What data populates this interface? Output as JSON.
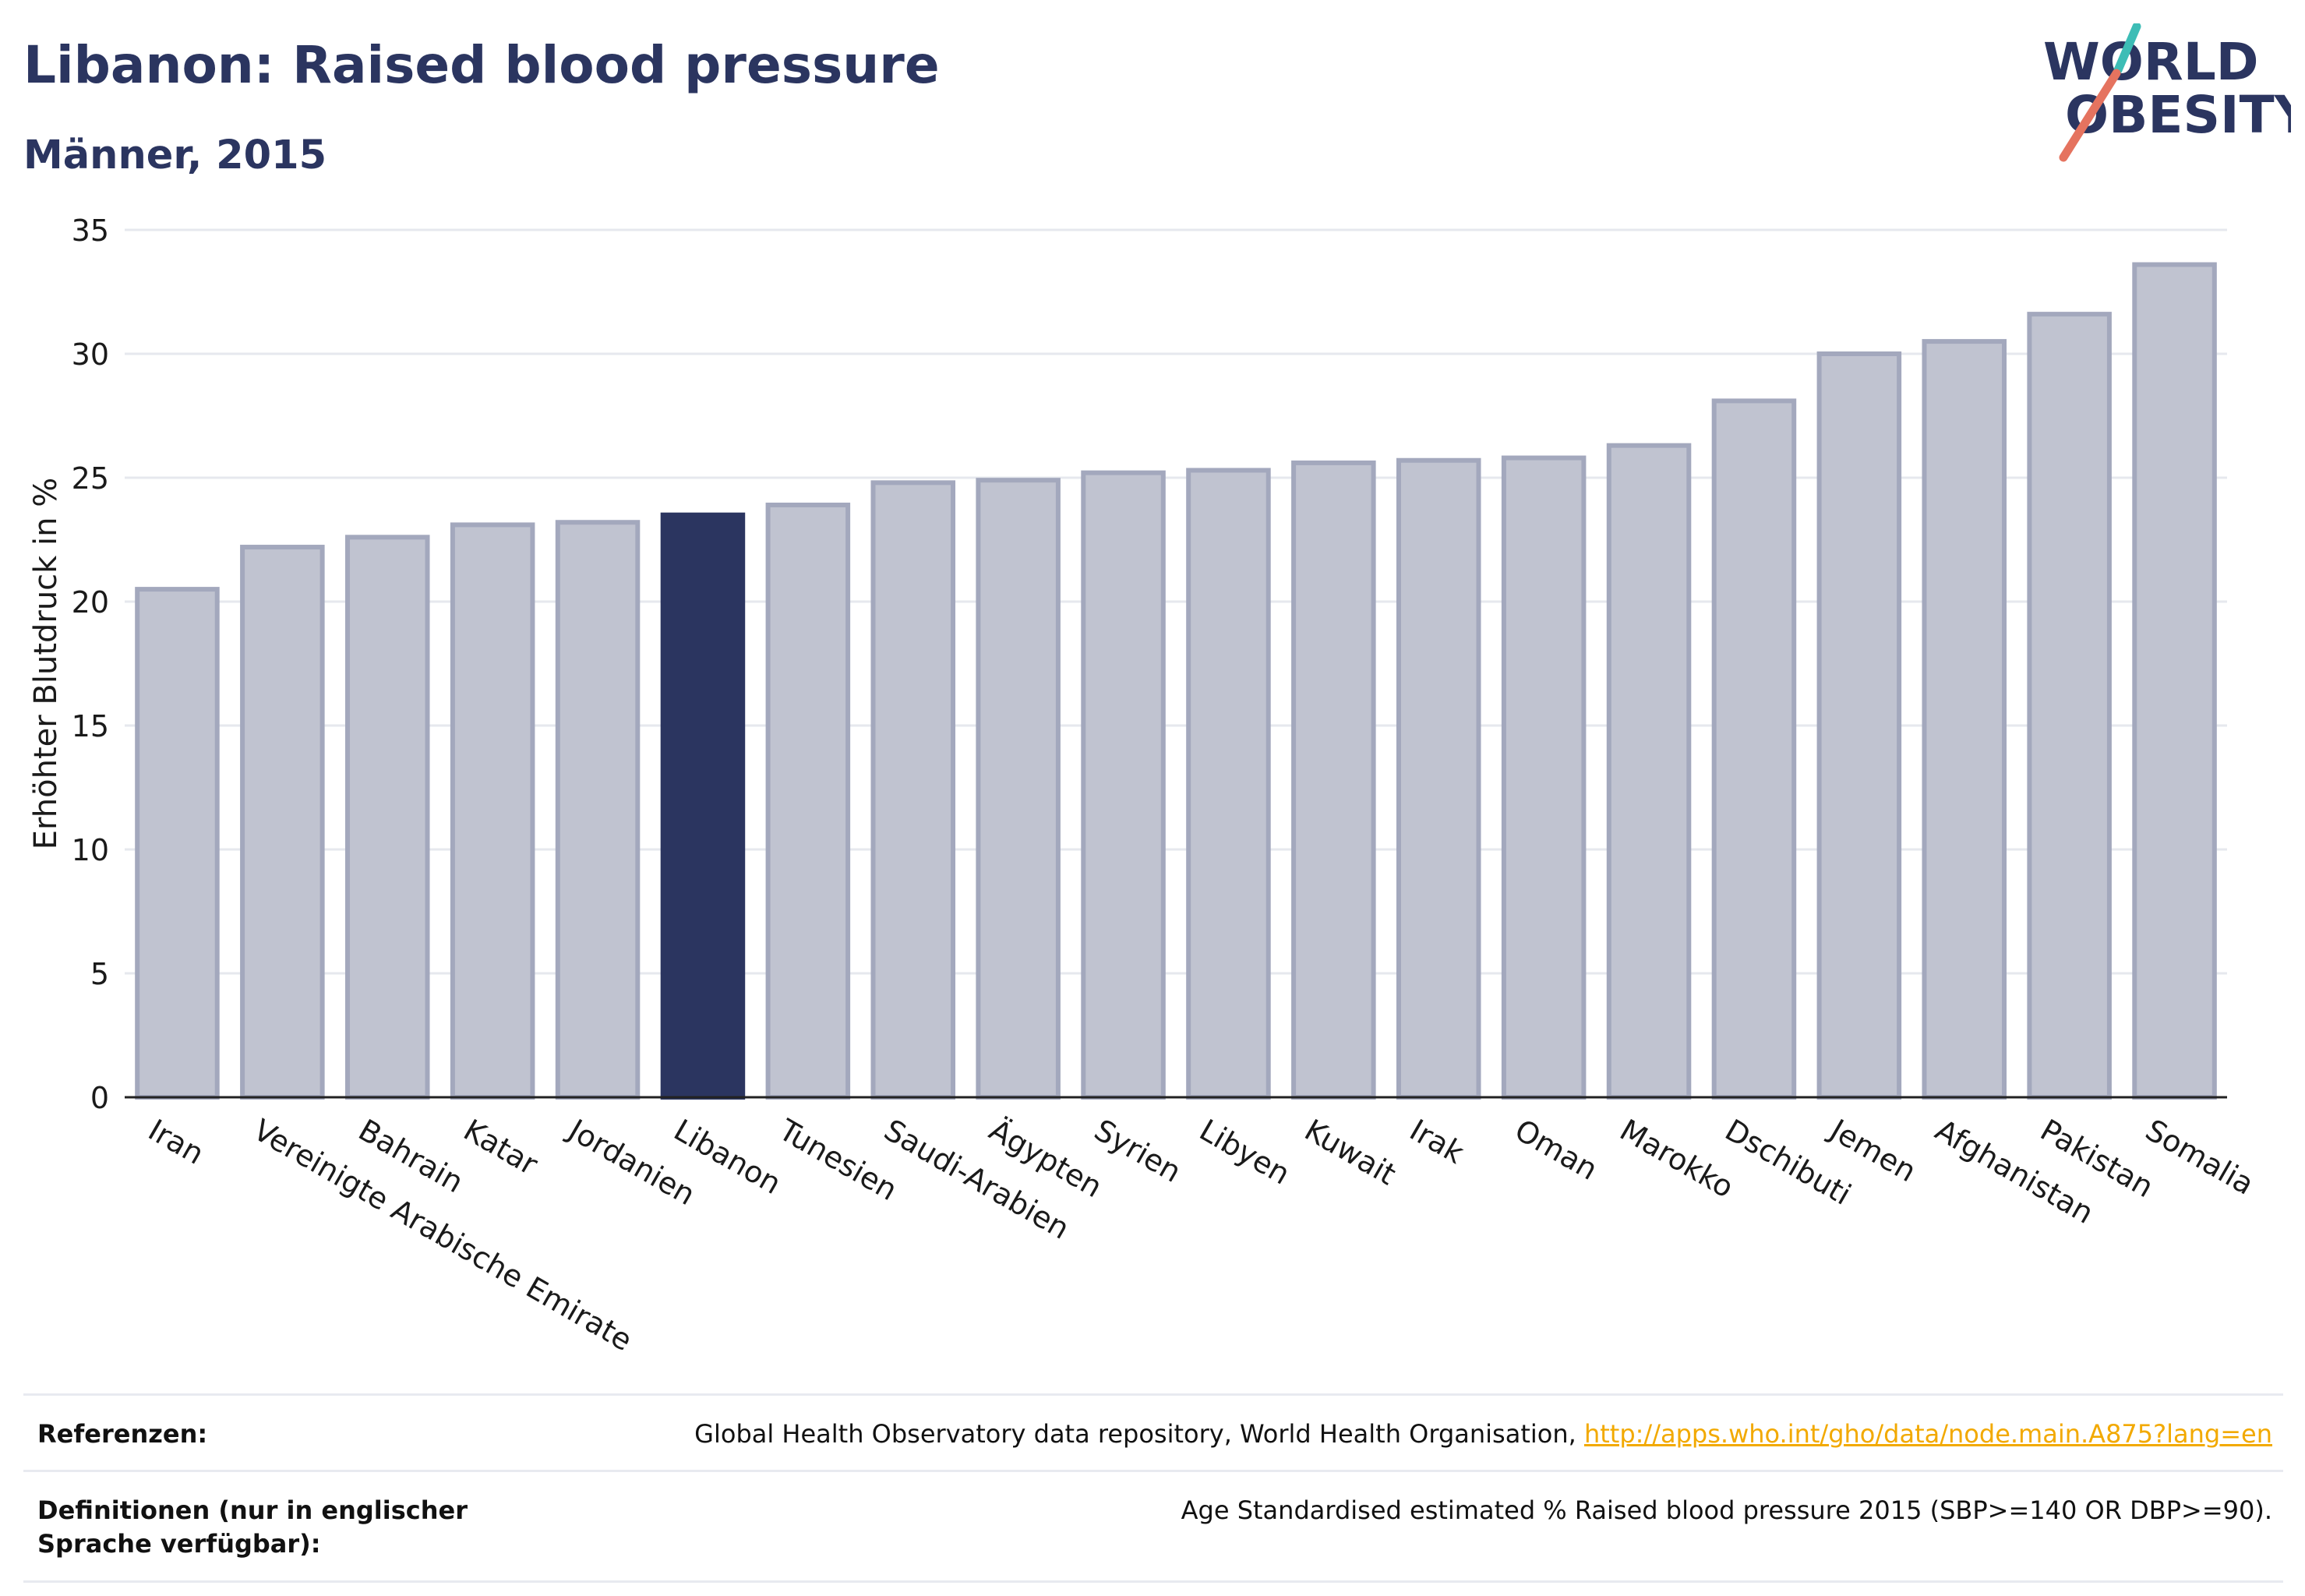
{
  "header": {
    "title": "Libanon: Raised blood pressure",
    "subtitle": "Männer, 2015"
  },
  "logo": {
    "line1": "WORLD",
    "line2": "OBESITY",
    "slash_colors": [
      "#3dbdb6",
      "#e5735f"
    ]
  },
  "colors": {
    "highlight": "#2b3560",
    "bar_fill": "#c0c3d0",
    "bar_stroke": "#a3a8bd",
    "grid": "#e6e8ee",
    "axis": "#222222",
    "link": "#f2a900"
  },
  "chart_data": {
    "type": "bar",
    "title": "Libanon: Raised blood pressure",
    "subtitle": "Männer, 2015",
    "ylabel": "Erhöhter Blutdruck in %",
    "xlabel": "",
    "ylim": [
      0,
      35
    ],
    "yticks": [
      0,
      5,
      10,
      15,
      20,
      25,
      30,
      35
    ],
    "grid": true,
    "highlight": "Libanon",
    "categories": [
      "Iran",
      "Vereinigte Arabische Emirate",
      "Bahrain",
      "Katar",
      "Jordanien",
      "Libanon",
      "Tunesien",
      "Saudi-Arabien",
      "Ägypten",
      "Syrien",
      "Libyen",
      "Kuwait",
      "Irak",
      "Oman",
      "Marokko",
      "Dschibuti",
      "Jemen",
      "Afghanistan",
      "Pakistan",
      "Somalia"
    ],
    "values": [
      20.5,
      22.2,
      22.6,
      23.1,
      23.2,
      23.5,
      23.9,
      24.8,
      24.9,
      25.2,
      25.3,
      25.6,
      25.7,
      25.8,
      26.3,
      28.1,
      30.0,
      30.5,
      31.6,
      33.6
    ]
  },
  "references": {
    "ref_label": "Referenzen:",
    "ref_text": "Global Health Observatory data repository, World Health Organisation, ",
    "ref_link": "http://apps.who.int/gho/data/node.main.A875?lang=en",
    "def_label": "Definitionen (nur in englischer Sprache verfügbar):",
    "def_text": "Age Standardised estimated % Raised blood pressure 2015 (SBP>=140 OR DBP>=90)."
  }
}
